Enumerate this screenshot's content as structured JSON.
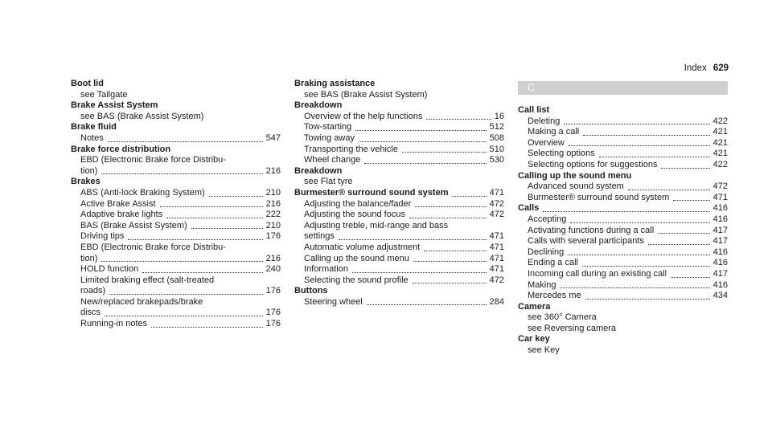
{
  "header": {
    "title": "Index",
    "page": "629"
  },
  "columns": [
    {
      "entries": [
        {
          "term": "Boot lid",
          "items": [
            {
              "text": "see Tailgate"
            }
          ]
        },
        {
          "term": "Brake Assist System",
          "items": [
            {
              "text": "see BAS (Brake Assist System)"
            }
          ]
        },
        {
          "term": "Brake fluid",
          "items": [
            {
              "text": "Notes",
              "page": 547
            }
          ]
        },
        {
          "term": "Brake force distribution",
          "items": [
            {
              "text": "EBD (Electronic Brake force Distribu-",
              "cont": "tion)",
              "page": 216
            }
          ]
        },
        {
          "term": "Brakes",
          "items": [
            {
              "text": "ABS (Anti-lock Braking System)",
              "page": 210
            },
            {
              "text": "Active Brake Assist",
              "page": 216
            },
            {
              "text": "Adaptive brake lights",
              "page": 222
            },
            {
              "text": "BAS (Brake Assist System)",
              "page": 210
            },
            {
              "text": "Driving tips",
              "page": 176
            },
            {
              "text": "EBD (Electronic Brake force Distribu-",
              "cont": "tion)",
              "page": 216
            },
            {
              "text": "HOLD function",
              "page": 240
            },
            {
              "text": "Limited braking effect (salt-treated",
              "cont": "roads)",
              "page": 176
            },
            {
              "text": "New/replaced brakepads/brake",
              "cont": "discs",
              "page": 176
            },
            {
              "text": "Running-in notes",
              "page": 176
            }
          ]
        }
      ]
    },
    {
      "entries": [
        {
          "term": "Braking assistance",
          "items": [
            {
              "text": "see BAS (Brake Assist System)"
            }
          ]
        },
        {
          "term": "Breakdown",
          "items": [
            {
              "text": "Overview of the help functions",
              "page": 16
            },
            {
              "text": "Tow-starting",
              "page": 512
            },
            {
              "text": "Towing away",
              "page": 508
            },
            {
              "text": "Transporting the vehicle",
              "page": 510
            },
            {
              "text": "Wheel change",
              "page": 530
            }
          ]
        },
        {
          "term": "Breakdown",
          "items": [
            {
              "text": "see Flat tyre"
            }
          ]
        },
        {
          "term": "Burmester® surround sound system",
          "page": 471,
          "items": [
            {
              "text": "Adjusting the balance/fader",
              "page": 472
            },
            {
              "text": "Adjusting the sound focus",
              "page": 472
            },
            {
              "text": "Adjusting treble, mid-range and bass",
              "cont": "settings",
              "page": 471
            },
            {
              "text": "Automatic volume adjustment",
              "page": 471
            },
            {
              "text": "Calling up the sound menu",
              "page": 471
            },
            {
              "text": "Information",
              "page": 471
            },
            {
              "text": "Selecting the sound profile",
              "page": 472
            }
          ]
        },
        {
          "term": "Buttons",
          "items": [
            {
              "text": "Steering wheel",
              "page": 284
            }
          ]
        }
      ]
    },
    {
      "section": "C",
      "entries": [
        {
          "term": "Call list",
          "items": [
            {
              "text": "Deleting",
              "page": 422
            },
            {
              "text": "Making a call",
              "page": 421
            },
            {
              "text": "Overview",
              "page": 421
            },
            {
              "text": "Selecting options",
              "page": 421
            },
            {
              "text": "Selecting options for suggestions",
              "page": 422
            }
          ]
        },
        {
          "term": "Calling up the sound menu",
          "items": [
            {
              "text": "Advanced sound system",
              "page": 472
            },
            {
              "text": "Burmester® surround sound system",
              "page": 471
            }
          ]
        },
        {
          "term": "Calls",
          "page": 416,
          "items": [
            {
              "text": "Accepting",
              "page": 416
            },
            {
              "text": "Activating functions during a call",
              "page": 417
            },
            {
              "text": "Calls with several participants",
              "page": 417
            },
            {
              "text": "Declining",
              "page": 416
            },
            {
              "text": "Ending a call",
              "page": 416
            },
            {
              "text": "Incoming call during an existing call",
              "page": 417
            },
            {
              "text": "Making",
              "page": 416
            },
            {
              "text": "Mercedes me",
              "page": 434
            }
          ]
        },
        {
          "term": "Camera",
          "items": [
            {
              "text": "see 360° Camera"
            },
            {
              "text": "see Reversing camera"
            }
          ]
        },
        {
          "term": "Car key",
          "items": [
            {
              "text": "see Key"
            }
          ]
        }
      ]
    }
  ]
}
